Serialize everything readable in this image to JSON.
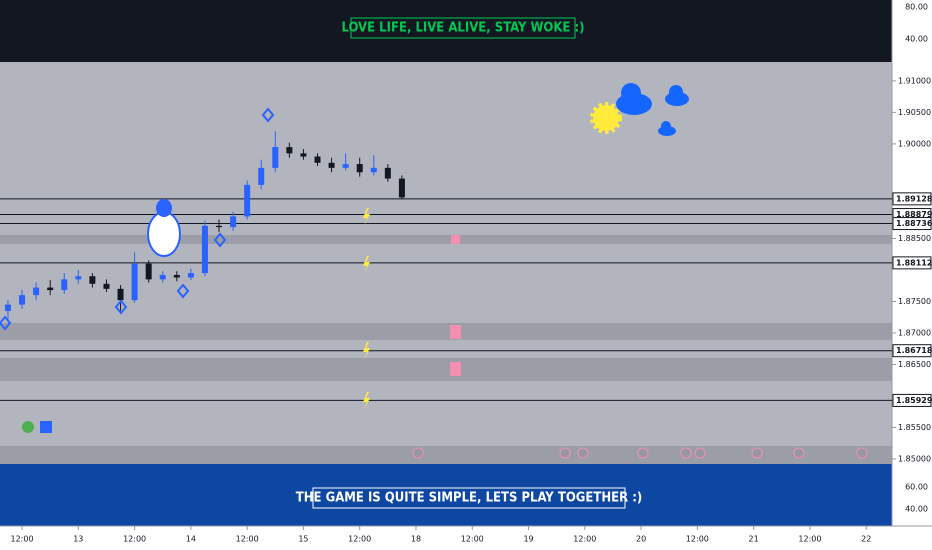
{
  "top_banner": {
    "title": "LOVE LIFE, LIVE ALIVE, STAY WOKE :)",
    "axis_labels": [
      "80.00",
      "40.00"
    ]
  },
  "bottom_banner": {
    "title": "THE GAME IS QUITE SIMPLE, LETS PLAY TOGETHER :)",
    "axis_labels": [
      "60.00",
      "40.00"
    ]
  },
  "chart_data": {
    "type": "candlestick",
    "x": [
      -3,
      0,
      3,
      6,
      9,
      12,
      15,
      18,
      21,
      24,
      27,
      30,
      33,
      36,
      39,
      42,
      45,
      48,
      51,
      54,
      57,
      60,
      63,
      66,
      69,
      72,
      75,
      78,
      81
    ],
    "open": [
      1.8735,
      1.8745,
      1.876,
      1.8772,
      1.8768,
      1.8785,
      1.879,
      1.8778,
      1.877,
      1.8752,
      1.881,
      1.8785,
      1.8792,
      1.8788,
      1.8795,
      1.887,
      1.8868,
      1.8885,
      1.8935,
      1.8962,
      1.8995,
      1.8985,
      1.898,
      1.897,
      1.8962,
      1.8968,
      1.8955,
      1.8962,
      1.8945
    ],
    "high": [
      1.8752,
      1.8768,
      1.878,
      1.8784,
      1.8795,
      1.88,
      1.8795,
      1.8785,
      1.8776,
      1.8828,
      1.8815,
      1.8798,
      1.8798,
      1.8802,
      1.8878,
      1.888,
      1.8892,
      1.8942,
      1.8975,
      1.902,
      1.9002,
      1.8992,
      1.8985,
      1.8978,
      1.8985,
      1.8978,
      1.8982,
      1.8968,
      1.895
    ],
    "low": [
      1.872,
      1.8738,
      1.8752,
      1.876,
      1.8762,
      1.8778,
      1.8772,
      1.8765,
      1.8735,
      1.8748,
      1.878,
      1.878,
      1.8782,
      1.8784,
      1.879,
      1.886,
      1.8862,
      1.888,
      1.8928,
      1.8955,
      1.8978,
      1.8975,
      1.8965,
      1.8955,
      1.8958,
      1.8948,
      1.895,
      1.894,
      1.8912
    ],
    "close": [
      1.8745,
      1.876,
      1.8772,
      1.8768,
      1.8785,
      1.879,
      1.8778,
      1.877,
      1.8752,
      1.881,
      1.8785,
      1.8792,
      1.8788,
      1.8795,
      1.887,
      1.8868,
      1.8885,
      1.8935,
      1.8962,
      1.8995,
      1.8985,
      1.898,
      1.897,
      1.8962,
      1.8968,
      1.8955,
      1.8962,
      1.8945,
      1.8915
    ],
    "up_color": "#2962ff",
    "down_color": "#131722",
    "xlim": [
      -4.7,
      185.5
    ],
    "xticks": [
      {
        "value": 0,
        "label": "12:00"
      },
      {
        "value": 12,
        "label": "13"
      },
      {
        "value": 24,
        "label": "12:00"
      },
      {
        "value": 36,
        "label": "14"
      },
      {
        "value": 48,
        "label": "12:00"
      },
      {
        "value": 60,
        "label": "15"
      },
      {
        "value": 72,
        "label": "12:00"
      },
      {
        "value": 84,
        "label": "18"
      },
      {
        "value": 96,
        "label": "12:00"
      },
      {
        "value": 108,
        "label": "19"
      },
      {
        "value": 120,
        "label": "12:00"
      },
      {
        "value": 132,
        "label": "20"
      },
      {
        "value": 144,
        "label": "12:00"
      },
      {
        "value": 156,
        "label": "21"
      },
      {
        "value": 168,
        "label": "12:00"
      },
      {
        "value": 180,
        "label": "22"
      }
    ],
    "ylim": [
      1.8492,
      1.913
    ],
    "yticks": [
      {
        "value": 1.91,
        "label": "1.91000"
      },
      {
        "value": 1.905,
        "label": "1.90500"
      },
      {
        "value": 1.9,
        "label": "1.90000"
      },
      {
        "value": 1.885,
        "label": "1.88500"
      },
      {
        "value": 1.875,
        "label": "1.87500"
      },
      {
        "value": 1.87,
        "label": "1.87000"
      },
      {
        "value": 1.865,
        "label": "1.86500"
      },
      {
        "value": 1.855,
        "label": "1.85500"
      },
      {
        "value": 1.85,
        "label": "1.85000"
      }
    ],
    "levels": [
      1.89128,
      1.88879,
      1.88736,
      1.88112,
      1.86718,
      1.85929
    ],
    "zones": [
      [
        1.88413,
        1.88556
      ],
      [
        1.86889,
        1.87159
      ],
      [
        1.86238,
        1.86603
      ],
      [
        1.8492,
        1.85206
      ]
    ],
    "zone_color": "#9598a1"
  }
}
